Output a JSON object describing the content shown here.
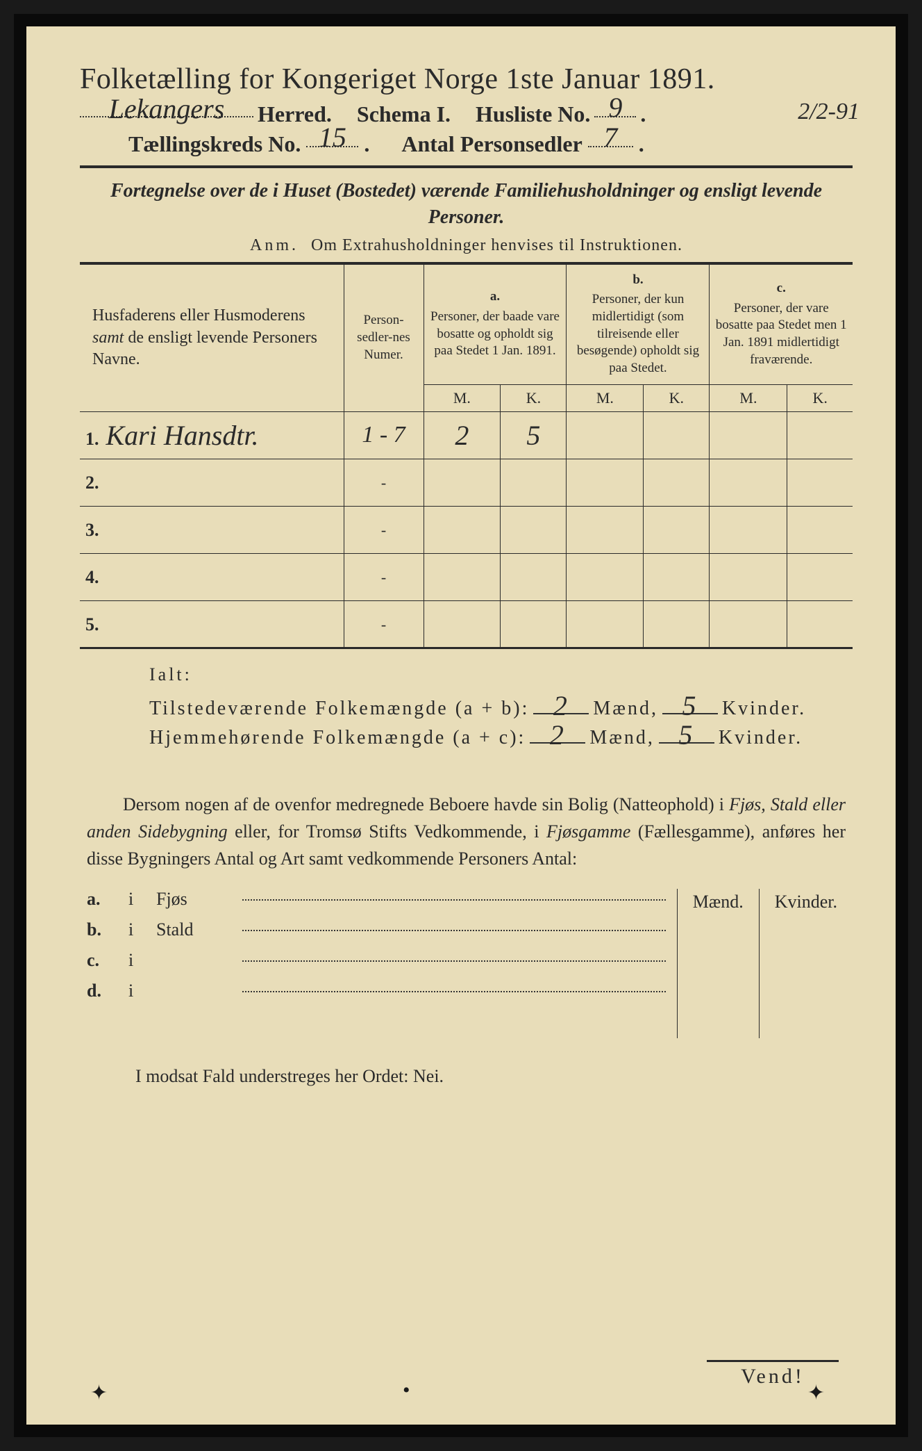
{
  "colors": {
    "paper": "#e8ddb9",
    "ink": "#2a2a2a",
    "border": "#0a0a0a",
    "handwriting": "#3a3a3a"
  },
  "typography": {
    "title_fontsize": 42,
    "line2_fontsize": 32,
    "body_fontsize": 26,
    "hand_fontsize": 40
  },
  "header": {
    "title": "Folketælling for Kongeriget Norge 1ste Januar 1891.",
    "herred_label": "Herred.",
    "herred_value": "Lekangers",
    "schema_label": "Schema I.",
    "husliste_label": "Husliste No.",
    "husliste_value": "9",
    "date_annotation": "2/2-91",
    "kreds_label": "Tællingskreds No.",
    "kreds_value": "15",
    "sedler_label": "Antal Personsedler",
    "sedler_value": "7"
  },
  "fortegnelse": {
    "line": "Fortegnelse over de i Huset (Bostedet) værende Familiehusholdninger og ensligt levende Personer.",
    "anm_lead": "Anm.",
    "anm_text": "Om Extrahusholdninger henvises til Instruktionen."
  },
  "table": {
    "col_names": "Husfaderens eller Husmoderens samt de ensligt levende Personers Navne.",
    "col_num": "Person-sedler-nes Numer.",
    "col_a_label": "a.",
    "col_a": "Personer, der baade vare bosatte og opholdt sig paa Stedet 1 Jan. 1891.",
    "col_b_label": "b.",
    "col_b": "Personer, der kun midlertidigt (som tilreisende eller besøgende) opholdt sig paa Stedet.",
    "col_c_label": "c.",
    "col_c": "Personer, der vare bosatte paa Stedet men 1 Jan. 1891 midlertidigt fraværende.",
    "mk_m": "M.",
    "mk_k": "K.",
    "rows": [
      {
        "n": "1.",
        "name": "Kari Hansdtr.",
        "num": "1 - 7",
        "a_m": "2",
        "a_k": "5",
        "b_m": "",
        "b_k": "",
        "c_m": "",
        "c_k": ""
      },
      {
        "n": "2.",
        "name": "",
        "num": "-",
        "a_m": "",
        "a_k": "",
        "b_m": "",
        "b_k": "",
        "c_m": "",
        "c_k": ""
      },
      {
        "n": "3.",
        "name": "",
        "num": "-",
        "a_m": "",
        "a_k": "",
        "b_m": "",
        "b_k": "",
        "c_m": "",
        "c_k": ""
      },
      {
        "n": "4.",
        "name": "",
        "num": "-",
        "a_m": "",
        "a_k": "",
        "b_m": "",
        "b_k": "",
        "c_m": "",
        "c_k": ""
      },
      {
        "n": "5.",
        "name": "",
        "num": "-",
        "a_m": "",
        "a_k": "",
        "b_m": "",
        "b_k": "",
        "c_m": "",
        "c_k": ""
      }
    ]
  },
  "ialt": {
    "title": "Ialt:",
    "line1_label": "Tilstedeværende Folkemængde (a + b):",
    "line2_label": "Hjemmehørende Folkemængde (a + c):",
    "maend": "Mænd,",
    "kvinder": "Kvinder.",
    "l1_m": "2",
    "l1_k": "5",
    "l2_m": "2",
    "l2_k": "5"
  },
  "dersom": "Dersom nogen af de ovenfor medregnede Beboere havde sin Bolig (Natteophold) i Fjøs, Stald eller anden Sidebygning eller, for Tromsø Stifts Vedkommende, i Fjøsgamme (Fællesgamme), anføres her disse Bygningers Antal og Art samt vedkommende Personers Antal:",
  "bygning": {
    "mk_m": "Mænd.",
    "mk_k": "Kvinder.",
    "rows": [
      {
        "lbl": "a.",
        "i": "i",
        "nm": "Fjøs"
      },
      {
        "lbl": "b.",
        "i": "i",
        "nm": "Stald"
      },
      {
        "lbl": "c.",
        "i": "i",
        "nm": ""
      },
      {
        "lbl": "d.",
        "i": "i",
        "nm": ""
      }
    ]
  },
  "modsat": "I modsat Fald understreges her Ordet: Nei.",
  "vend": "Vend!"
}
